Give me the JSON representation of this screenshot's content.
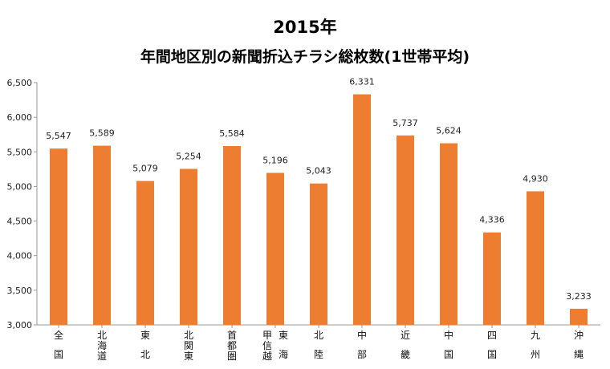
{
  "chart_data": {
    "type": "bar",
    "title": "2015年",
    "subtitle": "年間地区別の新聞折込チラシ総枚数(1世帯平均)",
    "xlabel": "",
    "ylabel": "",
    "ylim": [
      3000,
      6500
    ],
    "yticks": [
      "3,000",
      "3,500",
      "4,000",
      "4,500",
      "5,000",
      "5,500",
      "6,000",
      "6,500"
    ],
    "ytick_values": [
      3000,
      3500,
      4000,
      4500,
      5000,
      5500,
      6000,
      6500
    ],
    "grid": false,
    "legend": "none",
    "bar_color": "#ED7D31",
    "categories": [
      "全国",
      "北海道",
      "東北",
      "北関東",
      "首都圏",
      "甲信越 東海",
      "北陸",
      "中部",
      "近畿",
      "中国",
      "四国",
      "九州",
      "沖縄"
    ],
    "category_label_columns": [
      [
        [
          "全",
          "国"
        ]
      ],
      [
        [
          "北",
          "海",
          "道"
        ]
      ],
      [
        [
          "東",
          "北"
        ]
      ],
      [
        [
          "北",
          "関",
          "東"
        ]
      ],
      [
        [
          "首",
          "都",
          "圏"
        ]
      ],
      [
        [
          "甲",
          "信",
          "越"
        ],
        [
          "東",
          "海"
        ]
      ],
      [
        [
          "北",
          "陸"
        ]
      ],
      [
        [
          "中",
          "部"
        ]
      ],
      [
        [
          "近",
          "畿"
        ]
      ],
      [
        [
          "中",
          "国"
        ]
      ],
      [
        [
          "四",
          "国"
        ]
      ],
      [
        [
          "九",
          "州"
        ]
      ],
      [
        [
          "沖",
          "縄"
        ]
      ]
    ],
    "values": [
      5547,
      5589,
      5079,
      5254,
      5584,
      5196,
      5043,
      6331,
      5737,
      5624,
      4336,
      4930,
      3233
    ],
    "data_labels": [
      "5,547",
      "5,589",
      "5,079",
      "5,254",
      "5,584",
      "5,196",
      "5,043",
      "6,331",
      "5,737",
      "5,624",
      "4,336",
      "4,930",
      "3,233"
    ]
  }
}
